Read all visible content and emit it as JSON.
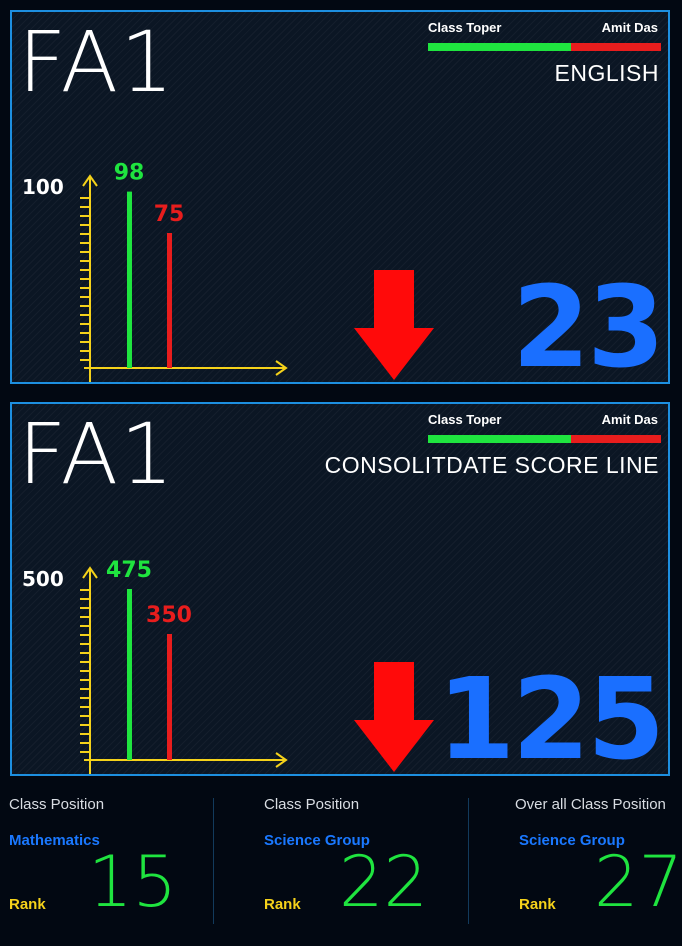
{
  "panels": [
    {
      "title": "FA1",
      "legend_left": "Class Toper",
      "legend_right": "Amit Das",
      "subject": "ENGLISH",
      "difference": "23",
      "trend": "down",
      "chart_data": {
        "type": "bar",
        "categories": [
          "Class Toper",
          "Amit Das"
        ],
        "values": [
          98,
          75
        ],
        "max_label": "100",
        "ylim": [
          0,
          100
        ],
        "colors": [
          "#1fe43f",
          "#e81d1d"
        ]
      }
    },
    {
      "title": "FA1",
      "legend_left": "Class Toper",
      "legend_right": "Amit Das",
      "subject": "CONSOLITDATE SCORE LINE",
      "difference": "125",
      "trend": "down",
      "chart_data": {
        "type": "bar",
        "categories": [
          "Class Toper",
          "Amit Das"
        ],
        "values": [
          475,
          350
        ],
        "max_label": "500",
        "ylim": [
          0,
          500
        ],
        "colors": [
          "#1fe43f",
          "#e81d1d"
        ]
      }
    }
  ],
  "positions": [
    {
      "title": "Class Position",
      "subject": "Mathematics",
      "rank_label": "Rank",
      "rank": "15"
    },
    {
      "title": "Class Position",
      "subject": "Science Group",
      "rank_label": "Rank",
      "rank": "22"
    },
    {
      "title": "Over all Class Position",
      "subject": "Science Group",
      "rank_label": "Rank",
      "rank": "27"
    }
  ],
  "colors": {
    "accent_blue": "#1a6fff",
    "border_blue": "#1d8fe0",
    "green": "#1fe43f",
    "red": "#e81d1d",
    "axis_yellow": "#f5d21a"
  },
  "icons": {
    "trend_down": "arrow-down-icon"
  }
}
